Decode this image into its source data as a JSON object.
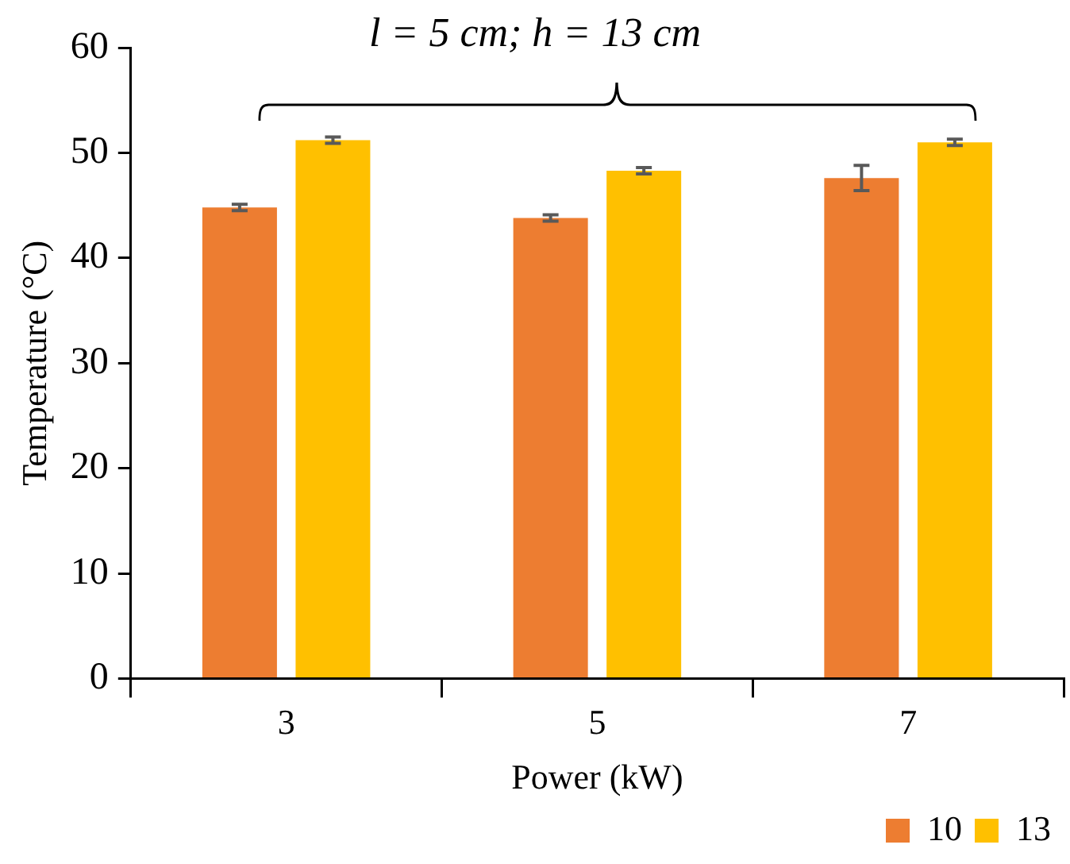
{
  "chart_data": {
    "type": "bar",
    "title": "l = 5 cm; h = 13 cm",
    "xlabel": "Power (kW)",
    "ylabel": "Temperature (°C)",
    "categories": [
      "3",
      "5",
      "7"
    ],
    "series": [
      {
        "name": "10",
        "color": "#ed7d31",
        "values": [
          44.8,
          43.8,
          47.6
        ],
        "errors": [
          0.3,
          0.3,
          1.2
        ]
      },
      {
        "name": "13",
        "color": "#ffc000",
        "values": [
          51.2,
          48.3,
          51.0
        ],
        "errors": [
          0.3,
          0.3,
          0.3
        ]
      }
    ],
    "ylim": [
      0,
      60
    ],
    "yticks": [
      0,
      10,
      20,
      30,
      40,
      50,
      60
    ],
    "grid": false,
    "legend": "bottom right"
  }
}
